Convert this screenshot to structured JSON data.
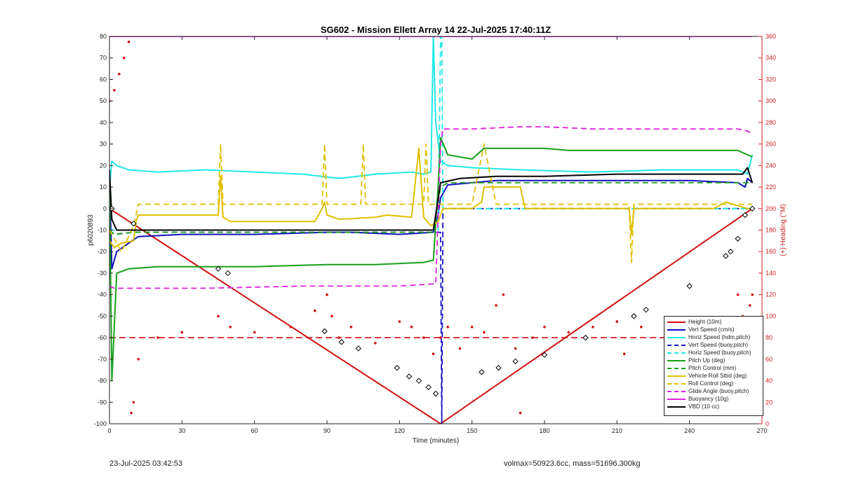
{
  "header": {
    "title": "SG602 - Mission Ellett Array 14 22-Jul-2025 17:40:11Z"
  },
  "footer": {
    "left": "23-Jul-2025 03:42:53",
    "right": "volmax=50923.6cc, mass=51696.300kg"
  },
  "chart_data": {
    "type": "line",
    "title": "SG602 - Mission Ellett Array 14 22-Jul-2025 17:40:11Z",
    "xlabel": "Time (minutes)",
    "ylabel": "p6020893",
    "y2label": "(+) Heading (°M)",
    "xlim": [
      0,
      270
    ],
    "ylim": [
      -100,
      80
    ],
    "y2lim": [
      0,
      360
    ],
    "xticks": [
      0,
      30,
      60,
      90,
      120,
      150,
      180,
      210,
      240,
      270
    ],
    "yticks": [
      -100,
      -90,
      -80,
      -70,
      -60,
      -50,
      -40,
      -30,
      -20,
      -10,
      0,
      10,
      20,
      30,
      40,
      50,
      60,
      70,
      80
    ],
    "y2ticks": [
      0,
      20,
      40,
      60,
      80,
      100,
      120,
      140,
      160,
      180,
      200,
      220,
      240,
      260,
      280,
      300,
      320,
      340,
      360
    ],
    "grid": false,
    "legend_position": "bottom-right",
    "colors": {
      "axis_left": "#222222",
      "axis_right": "#cc2222"
    },
    "heading_reference": 80,
    "series": [
      {
        "name": "Height (10m)",
        "color": "#d01010",
        "style": "solid",
        "x": [
          0,
          137,
          266
        ],
        "y": [
          0,
          -100,
          0
        ]
      },
      {
        "name": "Vert Speed (cm/s)",
        "color": "#1010c0",
        "style": "solid",
        "x": [
          0,
          1,
          3,
          8,
          12,
          30,
          60,
          90,
          100,
          120,
          134,
          136,
          137,
          140,
          150,
          160,
          180,
          200,
          220,
          240,
          260,
          263,
          264,
          266
        ],
        "y": [
          15,
          -28,
          -20,
          -16,
          -13,
          -12,
          -12,
          -11,
          -11,
          -12,
          -11,
          -3,
          5,
          11,
          12,
          13,
          13,
          13,
          13,
          13,
          12,
          10,
          14,
          12
        ]
      },
      {
        "name": "Horiz Speed (hdm,pitch)",
        "color": "#20e8e8",
        "style": "solid",
        "x": [
          0,
          1,
          3,
          8,
          20,
          40,
          60,
          80,
          95,
          110,
          125,
          130,
          133,
          134,
          135,
          137,
          140,
          150,
          170,
          200,
          230,
          260,
          264,
          266
        ],
        "y": [
          10,
          22,
          20,
          18,
          17,
          18,
          17,
          16,
          14,
          16,
          17,
          16,
          17,
          80,
          40,
          22,
          20,
          19,
          18,
          17,
          18,
          18,
          16,
          25
        ]
      },
      {
        "name": "Vert Speed (buoy,pitch)",
        "color": "#1010c0",
        "style": "dash",
        "x": [
          0,
          2,
          10,
          135,
          136,
          137,
          137.5,
          138,
          155,
          200,
          250,
          266
        ],
        "y": [
          -10,
          -12,
          -11,
          -11,
          -11,
          -11,
          -100,
          0,
          0,
          0,
          0,
          0
        ]
      },
      {
        "name": "Horiz Speed (buoy,pitch)",
        "color": "#20e8e8",
        "style": "dash",
        "x": [
          0,
          136,
          137,
          137.5,
          138,
          155,
          200,
          250,
          266
        ],
        "y": [
          -10,
          -10,
          80,
          80,
          0,
          0,
          0,
          0,
          0
        ]
      },
      {
        "name": "Pitch Up (deg)",
        "color": "#18a018",
        "style": "solid",
        "x": [
          0,
          1,
          3,
          8,
          20,
          40,
          60,
          90,
          110,
          130,
          134,
          136,
          137,
          140,
          150,
          155,
          160,
          180,
          190,
          200,
          220,
          240,
          260,
          264,
          266
        ],
        "y": [
          10,
          -80,
          -30,
          -28,
          -27,
          -27,
          -27,
          -26,
          -26,
          -25,
          -24,
          10,
          33,
          25,
          23,
          28,
          28,
          28,
          27,
          27,
          27,
          27,
          27,
          25,
          24
        ]
      },
      {
        "name": "Pitch Control (mm)",
        "color": "#18a018",
        "style": "dash",
        "x": [
          0,
          2,
          10,
          60,
          120,
          134,
          137,
          140,
          200,
          266
        ],
        "y": [
          -10,
          -12,
          -11,
          -11,
          -11,
          -11,
          10,
          12,
          12,
          12
        ]
      },
      {
        "name": "Vehicle Roll Stbd (deg)",
        "color": "#e0c000",
        "style": "solid",
        "x": [
          0,
          2,
          5,
          10,
          11,
          12,
          40,
          45,
          46,
          47,
          50,
          85,
          88,
          89,
          90,
          95,
          110,
          115,
          125,
          128,
          130,
          133,
          136,
          138,
          150,
          154,
          155,
          170,
          172,
          180,
          190,
          200,
          215,
          216,
          217,
          230,
          250,
          255,
          264,
          266
        ],
        "y": [
          -15,
          -18,
          -16,
          -15,
          -6,
          -3,
          -3,
          -3,
          15,
          -4,
          -6,
          -6,
          0,
          3,
          -3,
          -5,
          -4,
          -3,
          -4,
          28,
          -4,
          -8,
          -6,
          0,
          0,
          3,
          10,
          10,
          0,
          0,
          0,
          0,
          0,
          -12,
          0,
          0,
          0,
          3,
          0,
          0
        ]
      },
      {
        "name": "Roll Control (deg)",
        "color": "#e0c000",
        "style": "dash",
        "x": [
          0,
          5,
          10,
          12,
          40,
          45,
          46,
          47,
          60,
          88,
          89,
          90,
          104,
          105,
          106,
          130,
          131,
          132,
          150,
          155,
          160,
          180,
          200,
          215,
          216,
          217,
          240,
          250,
          260,
          266
        ],
        "y": [
          -10,
          -20,
          -8,
          2,
          2,
          2,
          30,
          2,
          2,
          2,
          30,
          2,
          2,
          30,
          2,
          2,
          30,
          2,
          2,
          30,
          2,
          2,
          2,
          2,
          -25,
          2,
          2,
          2,
          2,
          2
        ]
      },
      {
        "name": "Glide Angle (buoy,pitch)",
        "color": "#e020e0",
        "style": "dash",
        "x": [
          0,
          2,
          10,
          40,
          80,
          120,
          134,
          135,
          137,
          138,
          150,
          170,
          180,
          200,
          240,
          260,
          264,
          266
        ],
        "y": [
          -36,
          -37,
          -37,
          -37,
          -36,
          -36,
          -35,
          -35,
          30,
          37,
          37,
          38,
          38,
          37,
          37,
          37,
          36,
          35
        ]
      },
      {
        "name": "Buoyancy (10g)",
        "color": "#e020e0",
        "style": "solid",
        "x": [
          0,
          266
        ],
        "y": [
          80,
          80
        ]
      },
      {
        "name": "VBD (10 cc)",
        "color": "#000000",
        "style": "solid",
        "x": [
          0,
          1,
          3,
          130,
          134,
          137,
          145,
          160,
          180,
          210,
          240,
          262,
          264,
          266
        ],
        "y": [
          18,
          -5,
          -10,
          -10,
          -10,
          12,
          14,
          15,
          15,
          16,
          16,
          16,
          19,
          12
        ]
      }
    ],
    "heading_series": {
      "name": "(+) Heading (°M)",
      "color": "#d01010",
      "style": "dotted",
      "x": [
        0,
        2,
        4,
        6,
        8,
        9,
        10,
        12,
        20,
        30,
        45,
        50,
        60,
        75,
        85,
        90,
        92,
        95,
        100,
        110,
        120,
        125,
        130,
        134,
        137,
        140,
        145,
        150,
        155,
        160,
        163,
        168,
        170,
        175,
        180,
        190,
        200,
        210,
        213,
        220,
        230,
        240,
        250,
        258,
        260,
        262,
        265,
        266
      ],
      "y": [
        300,
        310,
        325,
        340,
        355,
        10,
        20,
        60,
        80,
        85,
        100,
        90,
        85,
        90,
        105,
        120,
        100,
        80,
        90,
        75,
        95,
        90,
        80,
        65,
        80,
        90,
        70,
        90,
        85,
        110,
        120,
        70,
        10,
        80,
        90,
        85,
        90,
        95,
        65,
        90,
        80,
        85,
        75,
        85,
        120,
        100,
        110,
        120
      ]
    },
    "markers": {
      "x": [
        1,
        10,
        45,
        49,
        89,
        96,
        103,
        119,
        124,
        128,
        132,
        135,
        154,
        161,
        168,
        180,
        197,
        222,
        217,
        240,
        255,
        257,
        260,
        263,
        266
      ],
      "y": [
        0,
        -7,
        -28,
        -30,
        -57,
        -62,
        -65,
        -74,
        -78,
        -80,
        -83,
        -86,
        -76,
        -74,
        -71,
        -68,
        -60,
        -47,
        -50,
        -36,
        -22,
        -20,
        -14,
        -3,
        0
      ]
    }
  }
}
